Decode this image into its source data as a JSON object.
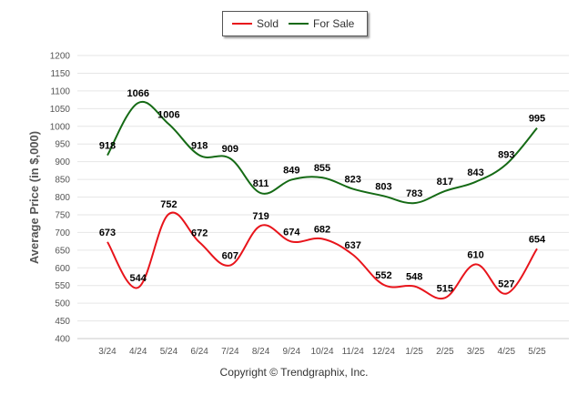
{
  "chart_data": {
    "type": "line",
    "categories": [
      "3/24",
      "4/24",
      "5/24",
      "6/24",
      "7/24",
      "8/24",
      "9/24",
      "10/24",
      "11/24",
      "12/24",
      "1/25",
      "2/25",
      "3/25",
      "4/25",
      "5/25"
    ],
    "series": [
      {
        "name": "Sold",
        "color": "#e8141b",
        "values": [
          673,
          544,
          752,
          672,
          607,
          719,
          674,
          682,
          637,
          552,
          548,
          515,
          610,
          527,
          654
        ]
      },
      {
        "name": "For Sale",
        "color": "#156a15",
        "values": [
          918,
          1066,
          1006,
          918,
          909,
          811,
          849,
          855,
          823,
          803,
          783,
          817,
          843,
          893,
          995
        ]
      }
    ],
    "ylabel": "Average Price (in $,000)",
    "ylim": [
      400,
      1200
    ],
    "yticks": [
      400,
      450,
      500,
      550,
      600,
      650,
      700,
      750,
      800,
      850,
      900,
      950,
      1000,
      1050,
      1100,
      1150,
      1200
    ],
    "grid": true,
    "legend_position": "top-center"
  },
  "footer": {
    "copyright": "Copyright © Trendgraphix, Inc."
  }
}
